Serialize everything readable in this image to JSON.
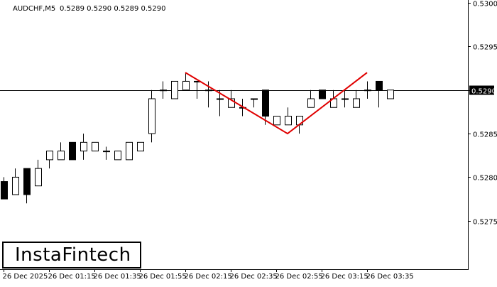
{
  "header": {
    "symbol": "AUDCHF,M5",
    "ohlc": "0.5289 0.5290 0.5289 0.5290"
  },
  "brand": {
    "logo_text": "InstaFintech"
  },
  "chart_data": {
    "type": "candlestick",
    "symbol": "AUDCHF",
    "timeframe": "M5",
    "ylim": [
      0.52705,
      0.53
    ],
    "y_ticks": [
      "0.5300",
      "0.5295",
      "0.5290",
      "0.5285",
      "0.5280",
      "0.5275"
    ],
    "x_tick_labels": [
      "26 Dec 2025",
      "26 Dec 01:15",
      "26 Dec 01:35",
      "26 Dec 01:55",
      "26 Dec 02:15",
      "26 Dec 02:35",
      "26 Dec 02:55",
      "26 Dec 03:15",
      "26 Dec 03:35"
    ],
    "current_price": "0.5290",
    "candles": [
      {
        "o": 0.52795,
        "h": 0.528,
        "l": 0.52775,
        "c": 0.52775
      },
      {
        "o": 0.5278,
        "h": 0.5281,
        "l": 0.5278,
        "c": 0.528
      },
      {
        "o": 0.5281,
        "h": 0.5281,
        "l": 0.5277,
        "c": 0.5278
      },
      {
        "o": 0.5279,
        "h": 0.5282,
        "l": 0.5279,
        "c": 0.5281
      },
      {
        "o": 0.5282,
        "h": 0.5283,
        "l": 0.5281,
        "c": 0.5283
      },
      {
        "o": 0.5282,
        "h": 0.5284,
        "l": 0.5282,
        "c": 0.5283
      },
      {
        "o": 0.5284,
        "h": 0.5284,
        "l": 0.5282,
        "c": 0.5282
      },
      {
        "o": 0.5283,
        "h": 0.5285,
        "l": 0.5282,
        "c": 0.5284
      },
      {
        "o": 0.5283,
        "h": 0.5284,
        "l": 0.5283,
        "c": 0.5284
      },
      {
        "o": 0.5283,
        "h": 0.52835,
        "l": 0.5282,
        "c": 0.5283
      },
      {
        "o": 0.5282,
        "h": 0.5283,
        "l": 0.5282,
        "c": 0.5283
      },
      {
        "o": 0.5282,
        "h": 0.5284,
        "l": 0.5282,
        "c": 0.5284
      },
      {
        "o": 0.5283,
        "h": 0.5284,
        "l": 0.5283,
        "c": 0.5284
      },
      {
        "o": 0.5285,
        "h": 0.529,
        "l": 0.5284,
        "c": 0.5289
      },
      {
        "o": 0.529,
        "h": 0.5291,
        "l": 0.5289,
        "c": 0.529
      },
      {
        "o": 0.5289,
        "h": 0.5291,
        "l": 0.5289,
        "c": 0.5291
      },
      {
        "o": 0.529,
        "h": 0.5292,
        "l": 0.529,
        "c": 0.5291
      },
      {
        "o": 0.5291,
        "h": 0.5291,
        "l": 0.5289,
        "c": 0.5291
      },
      {
        "o": 0.529,
        "h": 0.5291,
        "l": 0.5288,
        "c": 0.529
      },
      {
        "o": 0.5289,
        "h": 0.529,
        "l": 0.5287,
        "c": 0.5289
      },
      {
        "o": 0.5288,
        "h": 0.529,
        "l": 0.5288,
        "c": 0.5289
      },
      {
        "o": 0.5288,
        "h": 0.5289,
        "l": 0.5287,
        "c": 0.5288
      },
      {
        "o": 0.5289,
        "h": 0.5289,
        "l": 0.5288,
        "c": 0.5289
      },
      {
        "o": 0.529,
        "h": 0.529,
        "l": 0.5286,
        "c": 0.5287
      },
      {
        "o": 0.5286,
        "h": 0.5287,
        "l": 0.5286,
        "c": 0.5287
      },
      {
        "o": 0.5286,
        "h": 0.5288,
        "l": 0.5286,
        "c": 0.5287
      },
      {
        "o": 0.5286,
        "h": 0.5287,
        "l": 0.5285,
        "c": 0.5287
      },
      {
        "o": 0.5288,
        "h": 0.529,
        "l": 0.5288,
        "c": 0.5289
      },
      {
        "o": 0.529,
        "h": 0.529,
        "l": 0.5289,
        "c": 0.5289
      },
      {
        "o": 0.5288,
        "h": 0.529,
        "l": 0.5288,
        "c": 0.5289
      },
      {
        "o": 0.5289,
        "h": 0.529,
        "l": 0.5288,
        "c": 0.5289
      },
      {
        "o": 0.5288,
        "h": 0.529,
        "l": 0.5288,
        "c": 0.5289
      },
      {
        "o": 0.529,
        "h": 0.5291,
        "l": 0.5289,
        "c": 0.529
      },
      {
        "o": 0.5291,
        "h": 0.5291,
        "l": 0.5288,
        "c": 0.529
      },
      {
        "o": 0.5289,
        "h": 0.529,
        "l": 0.5289,
        "c": 0.529
      }
    ],
    "pattern": {
      "name": "double-top",
      "color": "#e00000",
      "points": [
        {
          "index": 16,
          "price": 0.5292
        },
        {
          "index": 25,
          "price": 0.5285
        },
        {
          "index": 32,
          "price": 0.5292
        }
      ]
    },
    "colors": {
      "background": "#ffffff",
      "candle": "#000000",
      "pattern": "#e00000"
    }
  }
}
